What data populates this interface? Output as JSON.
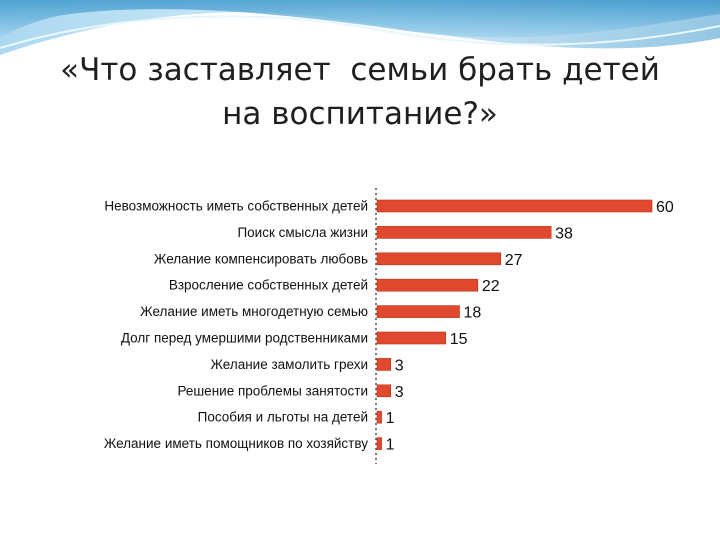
{
  "title": {
    "line1": "«Что заставляет  семьи брать детей",
    "line2": "на воспитание?»"
  },
  "colors": {
    "bar": "#e0492e",
    "bar_stroke": "#b83218",
    "title_text": "#1f1f1f",
    "header_wave": "#5aa9d6"
  },
  "chart_data": {
    "type": "bar",
    "orientation": "horizontal",
    "categories": [
      "Невозможность иметь собственных детей",
      "Поиск смысла жизни",
      "Желание компенсировать любовь",
      "Взросление собственных детей",
      "Желание иметь многодетную семью",
      "Долг перед умершими родственниками",
      "Желание замолить грехи",
      "Решение проблемы занятости",
      "Пособия и льготы на детей",
      "Желание иметь помощников по хозяйству"
    ],
    "values": [
      60,
      38,
      27,
      22,
      18,
      15,
      3,
      3,
      1,
      1
    ],
    "xlim": [
      0,
      60
    ],
    "grid": false,
    "legend": "none"
  }
}
